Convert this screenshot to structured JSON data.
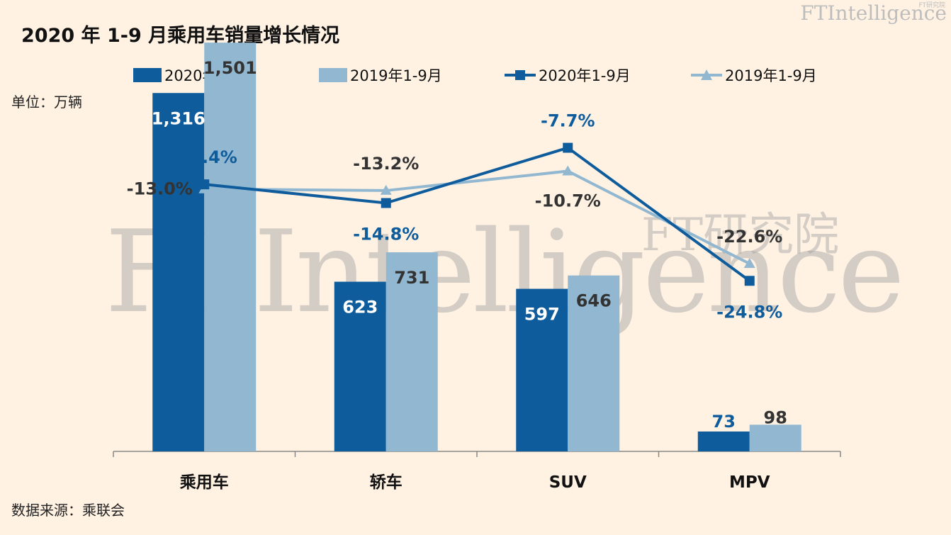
{
  "title": "2020 年 1-9 月乘用车销量增长情况",
  "unit_label": "单位：万辆",
  "source_label": "数据来源：乘联会",
  "brand": {
    "name": "FTIntelligence",
    "sub": "FT研究院"
  },
  "watermark": {
    "line1": "FT研究院",
    "line2": "FTIntelligence"
  },
  "colors": {
    "dark_blue": "#0e5c9c",
    "light_blue": "#92b8d1",
    "background": "#fff2e3",
    "dark_label": "#333333",
    "watermark": "#a0a0a0"
  },
  "legend": [
    {
      "label": "2020年1-9月",
      "kind": "bar",
      "color": "#0e5c9c"
    },
    {
      "label": "2019年1-9月",
      "kind": "bar",
      "color": "#92b8d1"
    },
    {
      "label": "2020年1-9月",
      "kind": "line-square",
      "color": "#0e5c9c"
    },
    {
      "label": "2019年1-9月",
      "kind": "line-triangle",
      "color": "#92b8d1"
    }
  ],
  "chart_data": {
    "type": "bar",
    "title": "2020 年 1-9 月乘用车销量增长情况",
    "ylabel": "单位：万辆",
    "categories": [
      "乘用车",
      "轿车",
      "SUV",
      "MPV"
    ],
    "series": [
      {
        "name": "2020年1-9月",
        "type": "bar",
        "values": [
          1316,
          623,
          597,
          73
        ],
        "value_labels": [
          "1,316",
          "623",
          "597",
          "73"
        ]
      },
      {
        "name": "2019年1-9月",
        "type": "bar",
        "values": [
          1501,
          731,
          646,
          98
        ],
        "value_labels": [
          "1,501",
          "731",
          "646",
          "98"
        ]
      },
      {
        "name": "2020年1-9月",
        "type": "line",
        "marker": "square",
        "values": [
          -12.4,
          -14.8,
          -7.7,
          -24.8
        ],
        "value_labels": [
          "-12.4%",
          "-14.8%",
          "-7.7%",
          "-24.8%"
        ]
      },
      {
        "name": "2019年1-9月",
        "type": "line",
        "marker": "triangle",
        "values": [
          -13.0,
          -13.2,
          -10.7,
          -22.6
        ],
        "value_labels": [
          "-13.0%",
          "-13.2%",
          "-10.7%",
          "-22.6%"
        ]
      }
    ],
    "bar_axis_range": [
      0,
      2250
    ],
    "line_axis_range": [
      -35,
      -2
    ],
    "grid": false,
    "legend_position": "top"
  }
}
